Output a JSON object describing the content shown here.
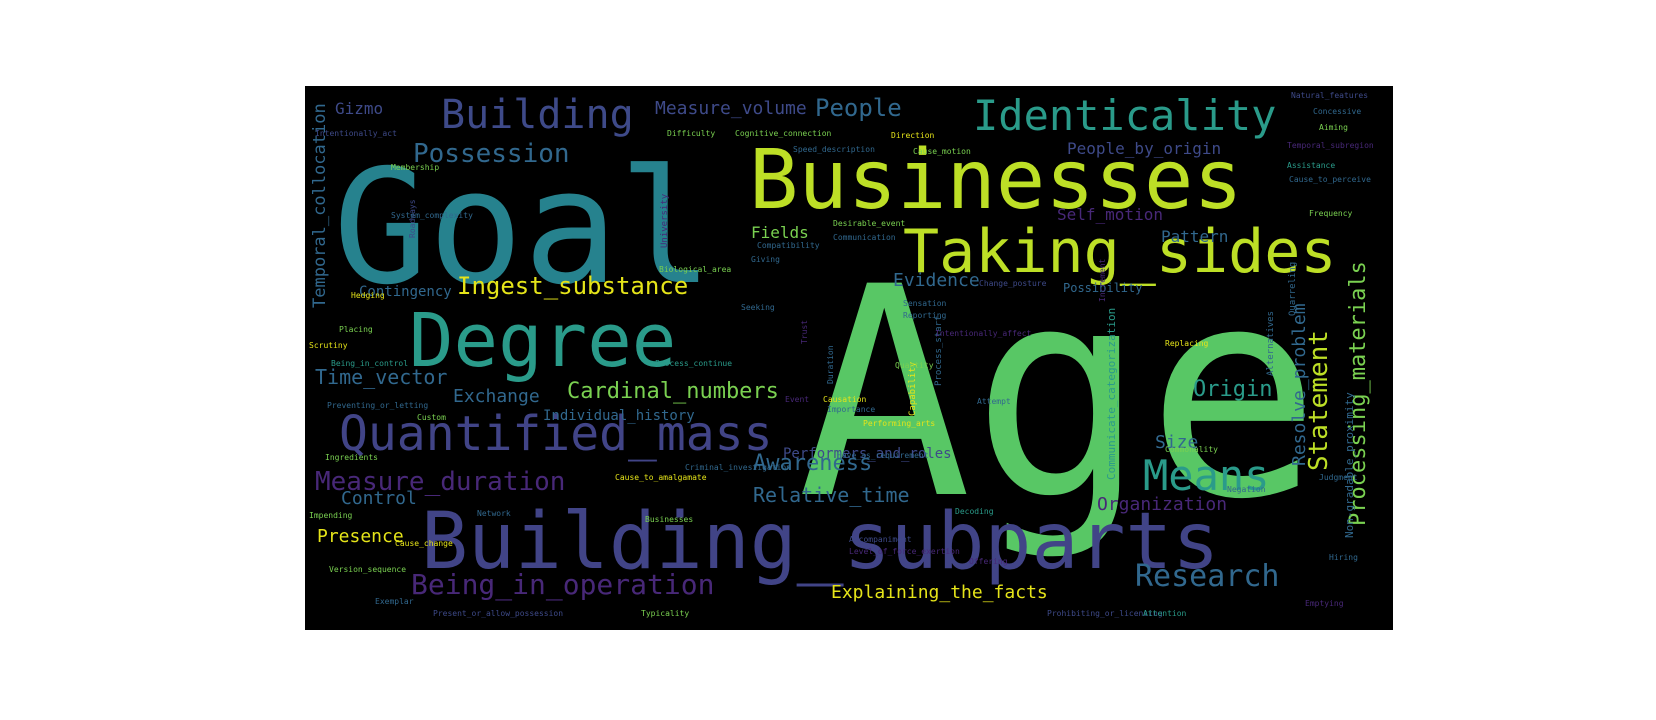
{
  "background": "#000000",
  "palette": {
    "teal": "#26828e",
    "teal_light": "#2a9b8a",
    "green": "#58c765",
    "green_light": "#7ad151",
    "lime": "#bddf26",
    "yellow": "#e5e419",
    "blue": "#3e4a89",
    "indigo": "#414487",
    "purple": "#482878",
    "purple_dark": "#440154",
    "slate": "#31688e"
  },
  "words": [
    {
      "text": "Age",
      "color": "#58c765"
    },
    {
      "text": "Goal",
      "color": "#26828e"
    },
    {
      "text": "Businesses",
      "color": "#bddf26"
    },
    {
      "text": "Building_subparts",
      "color": "#414487"
    },
    {
      "text": "Degree",
      "color": "#2a9b8a"
    },
    {
      "text": "Taking_sides",
      "color": "#bddf26"
    },
    {
      "text": "Quantified_mass",
      "color": "#414487"
    },
    {
      "text": "Identicality",
      "color": "#2a9b8a"
    },
    {
      "text": "Building",
      "color": "#3e4a89"
    },
    {
      "text": "Means",
      "color": "#2a9b8a"
    },
    {
      "text": "Research",
      "color": "#31688e"
    },
    {
      "text": "Being_in_operation",
      "color": "#482878"
    },
    {
      "text": "Measure_duration",
      "color": "#482878"
    },
    {
      "text": "Statement",
      "color": "#bddf26"
    },
    {
      "text": "Possession",
      "color": "#31688e"
    },
    {
      "text": "Ingest_substance",
      "color": "#e5e419"
    },
    {
      "text": "Cardinal_numbers",
      "color": "#7ad151"
    },
    {
      "text": "People",
      "color": "#31688e"
    },
    {
      "text": "Awareness",
      "color": "#31688e"
    },
    {
      "text": "Evidence",
      "color": "#31688e"
    },
    {
      "text": "Origin",
      "color": "#2a9b8a"
    },
    {
      "text": "Time_vector",
      "color": "#31688e"
    },
    {
      "text": "Relative_time",
      "color": "#31688e"
    },
    {
      "text": "Processing_materials",
      "color": "#7ad151"
    },
    {
      "text": "Resolve_problem",
      "color": "#31688e"
    },
    {
      "text": "Explaining_the_facts",
      "color": "#e5e419"
    },
    {
      "text": "Measure_volume",
      "color": "#3e4a89"
    },
    {
      "text": "Temporal_collocation",
      "color": "#31688e"
    },
    {
      "text": "Exchange",
      "color": "#31688e"
    },
    {
      "text": "Presence",
      "color": "#e5e419"
    },
    {
      "text": "Control",
      "color": "#31688e"
    },
    {
      "text": "Organization",
      "color": "#482878"
    },
    {
      "text": "Pattern",
      "color": "#31688e"
    },
    {
      "text": "Size",
      "color": "#31688e"
    },
    {
      "text": "Fields",
      "color": "#7ad151"
    },
    {
      "text": "Self_motion",
      "color": "#482878"
    },
    {
      "text": "People_by_origin",
      "color": "#3e4a89"
    },
    {
      "text": "Gizmo",
      "color": "#3e4a89"
    },
    {
      "text": "Contingency",
      "color": "#31688e"
    },
    {
      "text": "Communicate_categorization",
      "color": "#2a9b8a"
    },
    {
      "text": "Non-gradable_proximity",
      "color": "#31688e"
    },
    {
      "text": "Individual_history",
      "color": "#31688e"
    },
    {
      "text": "Performers_and_roles",
      "color": "#3e4a89"
    },
    {
      "text": "Possibility",
      "color": "#31688e"
    },
    {
      "text": "Intentionally_act",
      "color": "#3e4a89"
    },
    {
      "text": "Difficulty",
      "color": "#7ad151"
    },
    {
      "text": "Cognitive_connection",
      "color": "#7ad151"
    },
    {
      "text": "Speed_description",
      "color": "#31688e"
    },
    {
      "text": "Cause_motion",
      "color": "#7ad151"
    },
    {
      "text": "Direction",
      "color": "#e5e419"
    },
    {
      "text": "Natural_features",
      "color": "#3e4a89"
    },
    {
      "text": "Concessive",
      "color": "#31688e"
    },
    {
      "text": "Aiming",
      "color": "#7ad151"
    },
    {
      "text": "Temporal_subregion",
      "color": "#482878"
    },
    {
      "text": "Assistance",
      "color": "#2a9b8a"
    },
    {
      "text": "Cause_to_perceive",
      "color": "#31688e"
    },
    {
      "text": "Frequency",
      "color": "#7ad151"
    },
    {
      "text": "Membership",
      "color": "#7ad151"
    },
    {
      "text": "Roadways",
      "color": "#3e4a89"
    },
    {
      "text": "System_complexity",
      "color": "#31688e"
    },
    {
      "text": "University",
      "color": "#482878"
    },
    {
      "text": "Compatibility",
      "color": "#31688e"
    },
    {
      "text": "Giving",
      "color": "#31688e"
    },
    {
      "text": "Desirable_event",
      "color": "#7ad151"
    },
    {
      "text": "Communication",
      "color": "#31688e"
    },
    {
      "text": "Change_posture",
      "color": "#3e4a89"
    },
    {
      "text": "Sensation",
      "color": "#31688e"
    },
    {
      "text": "Reporting",
      "color": "#31688e"
    },
    {
      "text": "Quarreling",
      "color": "#31688e"
    },
    {
      "text": "Replacing",
      "color": "#e5e419"
    },
    {
      "text": "Hedging",
      "color": "#e5e419"
    },
    {
      "text": "Placing",
      "color": "#7ad151"
    },
    {
      "text": "Scrutiny",
      "color": "#e5e419"
    },
    {
      "text": "Being_in_control",
      "color": "#2a9b8a"
    },
    {
      "text": "Preventing_or_letting",
      "color": "#31688e"
    },
    {
      "text": "Custom",
      "color": "#7ad151"
    },
    {
      "text": "Biological_area",
      "color": "#7ad151"
    },
    {
      "text": "Seeking",
      "color": "#31688e"
    },
    {
      "text": "Process_continue",
      "color": "#2a9b8a"
    },
    {
      "text": "Quantity",
      "color": "#7ad151"
    },
    {
      "text": "Process_start",
      "color": "#31688e"
    },
    {
      "text": "Causation",
      "color": "#e5e419"
    },
    {
      "text": "Capability",
      "color": "#e5e419"
    },
    {
      "text": "Importance",
      "color": "#31688e"
    },
    {
      "text": "Performing_arts",
      "color": "#e5e419"
    },
    {
      "text": "Attempt",
      "color": "#31688e"
    },
    {
      "text": "Alternatives",
      "color": "#31688e"
    },
    {
      "text": "Ingredients",
      "color": "#7ad151"
    },
    {
      "text": "Have_as_requirement",
      "color": "#31688e"
    },
    {
      "text": "Criminal_investigation",
      "color": "#31688e"
    },
    {
      "text": "Cause_to_amalgamate",
      "color": "#e5e419"
    },
    {
      "text": "Impending",
      "color": "#7ad151"
    },
    {
      "text": "Network",
      "color": "#31688e"
    },
    {
      "text": "Commonality",
      "color": "#7ad151"
    },
    {
      "text": "Judgment",
      "color": "#31688e"
    },
    {
      "text": "Negation",
      "color": "#31688e"
    },
    {
      "text": "Decoding",
      "color": "#2a9b8a"
    },
    {
      "text": "Accompaniment",
      "color": "#3e4a89"
    },
    {
      "text": "Cause_change",
      "color": "#e5e419"
    },
    {
      "text": "Version_sequence",
      "color": "#7ad151"
    },
    {
      "text": "Businesses",
      "color": "#7ad151"
    },
    {
      "text": "Level_of_force_exertion",
      "color": "#482878"
    },
    {
      "text": "Offering",
      "color": "#482878"
    },
    {
      "text": "Hiring",
      "color": "#31688e"
    },
    {
      "text": "Exemplar",
      "color": "#31688e"
    },
    {
      "text": "Present_or_allow_possession",
      "color": "#3e4a89"
    },
    {
      "text": "Typicality",
      "color": "#7ad151"
    },
    {
      "text": "Prohibiting_or_licensing",
      "color": "#3e4a89"
    },
    {
      "text": "Attention",
      "color": "#2a9b8a"
    },
    {
      "text": "Emptying",
      "color": "#482878"
    },
    {
      "text": "Intentionally_affect",
      "color": "#482878"
    },
    {
      "text": "Increment",
      "color": "#482878"
    },
    {
      "text": "Trust",
      "color": "#482878"
    },
    {
      "text": "Event",
      "color": "#482878"
    },
    {
      "text": "Duration",
      "color": "#31688e"
    }
  ]
}
